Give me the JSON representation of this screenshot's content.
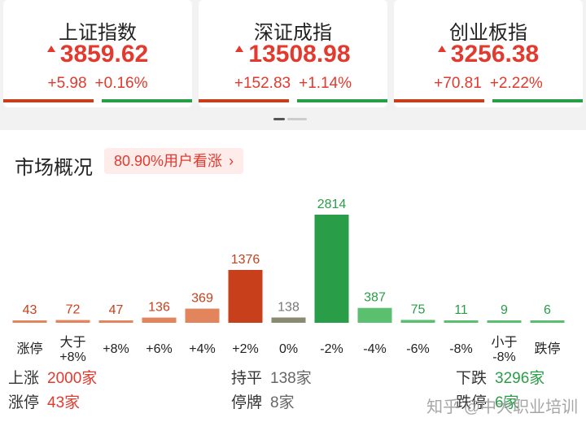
{
  "indices": [
    {
      "name": "上证指数",
      "price": "3859.62",
      "change": "+5.98",
      "pct": "+0.16%",
      "up_share": 0.5
    },
    {
      "name": "深证成指",
      "price": "13508.98",
      "change": "+152.83",
      "pct": "+1.14%",
      "up_share": 0.5
    },
    {
      "name": "创业板指",
      "price": "3256.38",
      "change": "+70.81",
      "pct": "+2.22%",
      "up_share": 0.5
    }
  ],
  "section": {
    "title": "市场概况",
    "sentiment": "80.90%用户看涨"
  },
  "colors": {
    "red": "#e23a2e",
    "bar_up_strong": "#c8401b",
    "bar_up_light": "#e2845c",
    "bar_flat": "#8a8a72",
    "bar_down": "#2a9d48",
    "bar_down_light": "#5bbf70"
  },
  "chart_data": {
    "type": "bar",
    "categories": [
      "涨停",
      "大于\n+8%",
      "+8%",
      "+6%",
      "+4%",
      "+2%",
      "0%",
      "-2%",
      "-4%",
      "-6%",
      "-8%",
      "小于\n-8%",
      "跌停"
    ],
    "values": [
      43,
      72,
      47,
      136,
      369,
      1376,
      138,
      2814,
      387,
      75,
      11,
      9,
      6
    ],
    "groups": [
      "up",
      "up",
      "up",
      "up",
      "up",
      "up_strong",
      "flat",
      "down_strong",
      "down",
      "down",
      "down",
      "down",
      "down"
    ]
  },
  "summary": {
    "up_label": "上涨",
    "up_value": "2000家",
    "limit_up_label": "涨停",
    "limit_up_value": "43家",
    "flat_label": "持平",
    "flat_value": "138家",
    "halt_label": "停牌",
    "halt_value": "8家",
    "down_label": "下跌",
    "down_value": "3296家",
    "limit_down_label": "跌停",
    "limit_down_value": "6家"
  },
  "watermark": "知乎 @中大职业培训"
}
